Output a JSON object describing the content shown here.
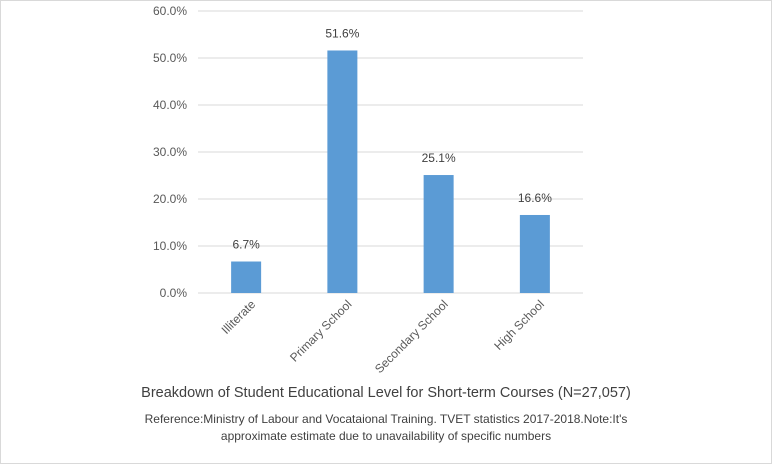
{
  "chart_data": {
    "type": "bar",
    "title": "Breakdown of Student Educational Level for Short-term Courses (N=27,057)",
    "note_line1": "Reference:Ministry of Labour and Vocataional Training. TVET statistics 2017-2018.Note:It's",
    "note_line2": "approximate estimate due to unavailability of specific numbers",
    "categories": [
      "Illiterate",
      "Primary School",
      "Secondary School",
      "High School"
    ],
    "values": [
      6.7,
      51.6,
      25.1,
      16.6
    ],
    "data_labels": [
      "6.7%",
      "51.6%",
      "25.1%",
      "16.6%"
    ],
    "ylim": [
      0,
      60
    ],
    "yticks": [
      0,
      10,
      20,
      30,
      40,
      50,
      60
    ],
    "ytick_labels": [
      "0.0%",
      "10.0%",
      "20.0%",
      "30.0%",
      "40.0%",
      "50.0%",
      "60.0%"
    ],
    "grid": true,
    "legend": "none",
    "colors": {
      "bar": "#5B9BD5",
      "grid": "#d9d9d9",
      "text": "#595959"
    }
  }
}
